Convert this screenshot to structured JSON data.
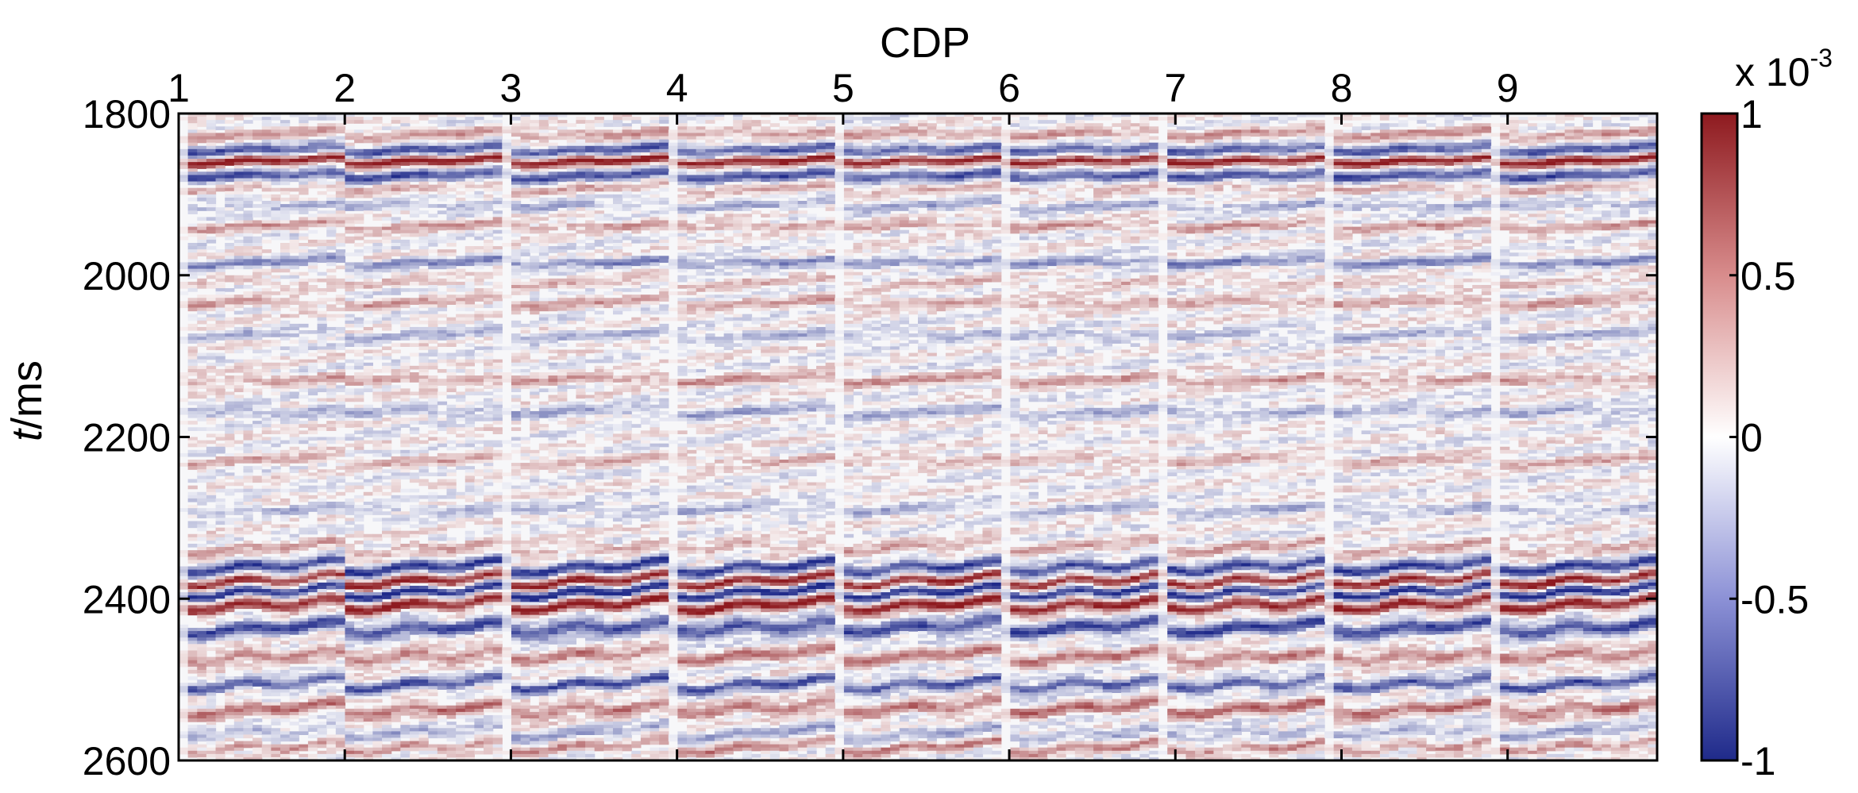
{
  "chart_data": {
    "type": "heatmap",
    "title": "",
    "xlabel": "CDP",
    "ylabel_italic": "t",
    "ylabel_unit": "/ms",
    "x_ticks": [
      1,
      2,
      3,
      4,
      5,
      6,
      7,
      8,
      9
    ],
    "x_tick_labels": [
      "1",
      "2",
      "3",
      "4",
      "5",
      "6",
      "7",
      "8",
      "9"
    ],
    "xlim": [
      1,
      9.9
    ],
    "y_ticks": [
      1800,
      2000,
      2200,
      2400,
      2600
    ],
    "y_tick_labels": [
      "1800",
      "2000",
      "2200",
      "2400",
      "2600"
    ],
    "ylim": [
      1800,
      2600
    ],
    "y_inverted": true,
    "colorbar": {
      "label_base": "x 10",
      "label_exp": "-3",
      "ticks": [
        1,
        0.5,
        0,
        -0.5,
        -1
      ],
      "tick_labels": [
        "1",
        "0.5",
        "0",
        "-0.5",
        "-1"
      ],
      "range": [
        -1,
        1
      ],
      "colors": {
        "neg": "#1f2a8a",
        "mid": "#ffffff",
        "pos": "#8e1a1f"
      }
    },
    "gathers": 9,
    "strong_events": [
      {
        "t": 1826,
        "amp": 0.35,
        "width": 6
      },
      {
        "t": 1846,
        "amp": -0.7,
        "width": 6
      },
      {
        "t": 1860,
        "amp": 1.0,
        "width": 5
      },
      {
        "t": 1878,
        "amp": -0.75,
        "width": 6
      },
      {
        "t": 1894,
        "amp": 0.25,
        "width": 5
      },
      {
        "t": 1915,
        "amp": -0.3,
        "width": 5
      },
      {
        "t": 1940,
        "amp": 0.35,
        "width": 5
      },
      {
        "t": 1985,
        "amp": -0.5,
        "width": 5
      },
      {
        "t": 2010,
        "amp": 0.2,
        "width": 5
      },
      {
        "t": 2035,
        "amp": 0.3,
        "width": 6
      },
      {
        "t": 2075,
        "amp": -0.25,
        "width": 6
      },
      {
        "t": 2130,
        "amp": 0.35,
        "width": 6
      },
      {
        "t": 2170,
        "amp": -0.3,
        "width": 6
      },
      {
        "t": 2230,
        "amp": 0.25,
        "width": 6
      },
      {
        "t": 2290,
        "amp": -0.25,
        "width": 6
      },
      {
        "t": 2340,
        "amp": 0.3,
        "width": 6
      },
      {
        "t": 2365,
        "amp": -0.9,
        "width": 6
      },
      {
        "t": 2382,
        "amp": 0.95,
        "width": 5
      },
      {
        "t": 2396,
        "amp": -1.0,
        "width": 5
      },
      {
        "t": 2412,
        "amp": 1.0,
        "width": 6
      },
      {
        "t": 2440,
        "amp": -0.8,
        "width": 8
      },
      {
        "t": 2475,
        "amp": 0.5,
        "width": 7
      },
      {
        "t": 2510,
        "amp": -0.75,
        "width": 6
      },
      {
        "t": 2540,
        "amp": 0.55,
        "width": 7
      },
      {
        "t": 2570,
        "amp": -0.3,
        "width": 6
      },
      {
        "t": 2588,
        "amp": 0.45,
        "width": 5
      }
    ]
  }
}
